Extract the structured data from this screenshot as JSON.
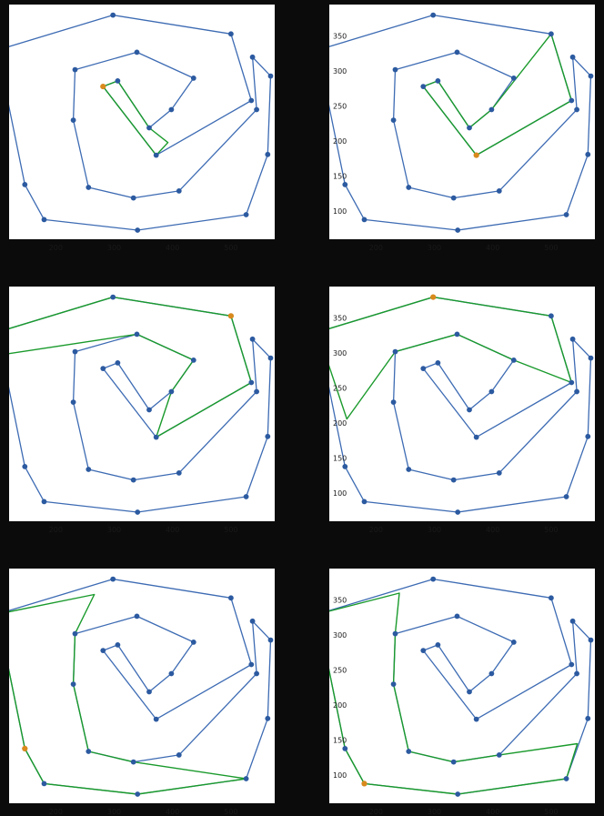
{
  "chart_data": {
    "type": "line",
    "description_of_layout": "3x2 grid of polygon-path panels",
    "colors": {
      "polygon": "#3d6bb3",
      "vertex": "#2c5aa0",
      "path": "#1a9a2c",
      "start": "#d98a1c",
      "background": "#0b0b0b",
      "plot_bg": "#ffffff"
    },
    "xlim": [
      120,
      575
    ],
    "ylim": [
      60,
      395
    ],
    "xticks": [
      {
        "v": 200,
        "label": "200"
      },
      {
        "v": 300,
        "label": "300"
      },
      {
        "v": 400,
        "label": "400"
      },
      {
        "v": 500,
        "label": "500"
      }
    ],
    "yticks": [
      {
        "v": 100,
        "label": "100"
      },
      {
        "v": 150,
        "label": "150"
      },
      {
        "v": 200,
        "label": "200"
      },
      {
        "v": 250,
        "label": "250"
      },
      {
        "v": 300,
        "label": "300"
      },
      {
        "v": 350,
        "label": "350"
      }
    ],
    "polygon_vertices": [
      {
        "x": 298,
        "y": 380
      },
      {
        "x": 500,
        "y": 353
      },
      {
        "x": 535,
        "y": 258
      },
      {
        "x": 372,
        "y": 180
      },
      {
        "x": 281,
        "y": 278
      },
      {
        "x": 306,
        "y": 286
      },
      {
        "x": 360,
        "y": 219
      },
      {
        "x": 398,
        "y": 245
      },
      {
        "x": 436,
        "y": 290
      },
      {
        "x": 339,
        "y": 327
      },
      {
        "x": 233,
        "y": 302
      },
      {
        "x": 230,
        "y": 230
      },
      {
        "x": 256,
        "y": 134
      },
      {
        "x": 333,
        "y": 119
      },
      {
        "x": 411,
        "y": 129
      },
      {
        "x": 544,
        "y": 245
      },
      {
        "x": 537,
        "y": 320
      },
      {
        "x": 568,
        "y": 293
      },
      {
        "x": 563,
        "y": 181
      },
      {
        "x": 526,
        "y": 95
      },
      {
        "x": 340,
        "y": 73
      },
      {
        "x": 180,
        "y": 88
      },
      {
        "x": 147,
        "y": 138
      },
      {
        "x": 100,
        "y": 330
      }
    ],
    "panels": [
      {
        "start": {
          "x": 281,
          "y": 278
        },
        "path": [
          {
            "x": 281,
            "y": 278
          },
          {
            "x": 306,
            "y": 286
          },
          {
            "x": 360,
            "y": 219
          },
          {
            "x": 392,
            "y": 198
          },
          {
            "x": 372,
            "y": 180
          },
          {
            "x": 281,
            "y": 278
          }
        ]
      },
      {
        "start": {
          "x": 372,
          "y": 180
        },
        "path": [
          {
            "x": 372,
            "y": 180
          },
          {
            "x": 281,
            "y": 278
          },
          {
            "x": 306,
            "y": 286
          },
          {
            "x": 360,
            "y": 219
          },
          {
            "x": 398,
            "y": 245
          },
          {
            "x": 500,
            "y": 353
          },
          {
            "x": 535,
            "y": 258
          },
          {
            "x": 372,
            "y": 180
          }
        ]
      },
      {
        "start": {
          "x": 500,
          "y": 353
        },
        "path": [
          {
            "x": 500,
            "y": 353
          },
          {
            "x": 298,
            "y": 380
          },
          {
            "x": 100,
            "y": 330
          },
          {
            "x": 110,
            "y": 298
          },
          {
            "x": 339,
            "y": 327
          },
          {
            "x": 436,
            "y": 290
          },
          {
            "x": 398,
            "y": 245
          },
          {
            "x": 372,
            "y": 180
          },
          {
            "x": 535,
            "y": 258
          },
          {
            "x": 500,
            "y": 353
          }
        ]
      },
      {
        "start": {
          "x": 298,
          "y": 380
        },
        "path": [
          {
            "x": 298,
            "y": 380
          },
          {
            "x": 500,
            "y": 353
          },
          {
            "x": 535,
            "y": 258
          },
          {
            "x": 436,
            "y": 290
          },
          {
            "x": 339,
            "y": 327
          },
          {
            "x": 233,
            "y": 302
          },
          {
            "x": 150,
            "y": 206
          },
          {
            "x": 100,
            "y": 330
          },
          {
            "x": 298,
            "y": 380
          }
        ]
      },
      {
        "start": {
          "x": 147,
          "y": 138
        },
        "path": [
          {
            "x": 147,
            "y": 138
          },
          {
            "x": 180,
            "y": 88
          },
          {
            "x": 340,
            "y": 73
          },
          {
            "x": 526,
            "y": 95
          },
          {
            "x": 333,
            "y": 119
          },
          {
            "x": 256,
            "y": 134
          },
          {
            "x": 230,
            "y": 230
          },
          {
            "x": 233,
            "y": 302
          },
          {
            "x": 266,
            "y": 358
          },
          {
            "x": 100,
            "y": 330
          },
          {
            "x": 147,
            "y": 138
          }
        ]
      },
      {
        "start": {
          "x": 180,
          "y": 88
        },
        "path": [
          {
            "x": 180,
            "y": 88
          },
          {
            "x": 340,
            "y": 73
          },
          {
            "x": 526,
            "y": 95
          },
          {
            "x": 545,
            "y": 145
          },
          {
            "x": 411,
            "y": 129
          },
          {
            "x": 333,
            "y": 119
          },
          {
            "x": 256,
            "y": 134
          },
          {
            "x": 230,
            "y": 230
          },
          {
            "x": 233,
            "y": 302
          },
          {
            "x": 240,
            "y": 360
          },
          {
            "x": 100,
            "y": 330
          },
          {
            "x": 147,
            "y": 138
          },
          {
            "x": 180,
            "y": 88
          }
        ]
      }
    ]
  }
}
